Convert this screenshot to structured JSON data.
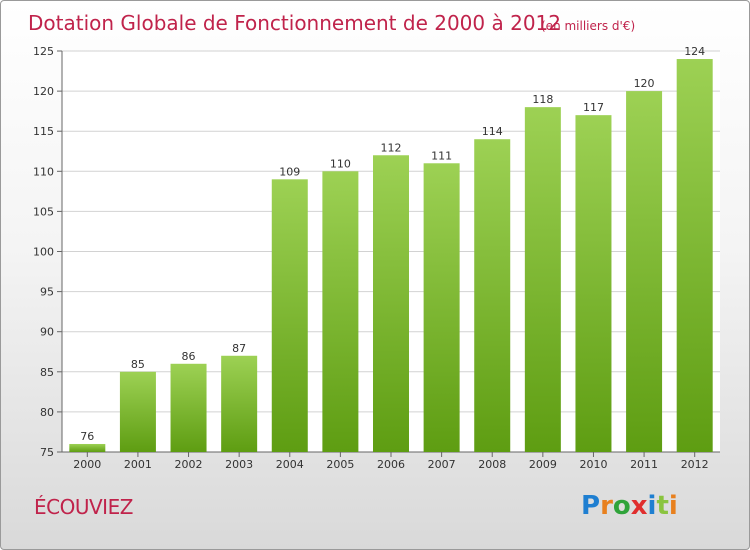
{
  "title_main": "Dotation Globale de Fonctionnement de 2000 à 2012",
  "title_unit": "(en milliers d'€)",
  "location": "ÉCOUVIEZ",
  "logo_text": "Proxiti",
  "colors": {
    "title": "#c0234b",
    "bar_top": "#9dd154",
    "bar_bottom": "#5e9d12",
    "logo": [
      "#1f7fd1",
      "#e8801e",
      "#2fa33a",
      "#e02e2e",
      "#1f7fd1",
      "#8ac43f",
      "#e8801e"
    ]
  },
  "chart_data": {
    "type": "bar",
    "title": "Dotation Globale de Fonctionnement de 2000 à 2012",
    "subtitle": "(en milliers d'€)",
    "categories": [
      "2000",
      "2001",
      "2002",
      "2003",
      "2004",
      "2005",
      "2006",
      "2007",
      "2008",
      "2009",
      "2010",
      "2011",
      "2012"
    ],
    "values": [
      76,
      85,
      86,
      87,
      109,
      110,
      112,
      111,
      114,
      118,
      117,
      120,
      124
    ],
    "ylim": [
      75,
      125
    ],
    "yticks": [
      75,
      80,
      85,
      90,
      95,
      100,
      105,
      110,
      115,
      120,
      125
    ],
    "xlabel": "",
    "ylabel": "",
    "grid": true,
    "data_labels": true
  }
}
